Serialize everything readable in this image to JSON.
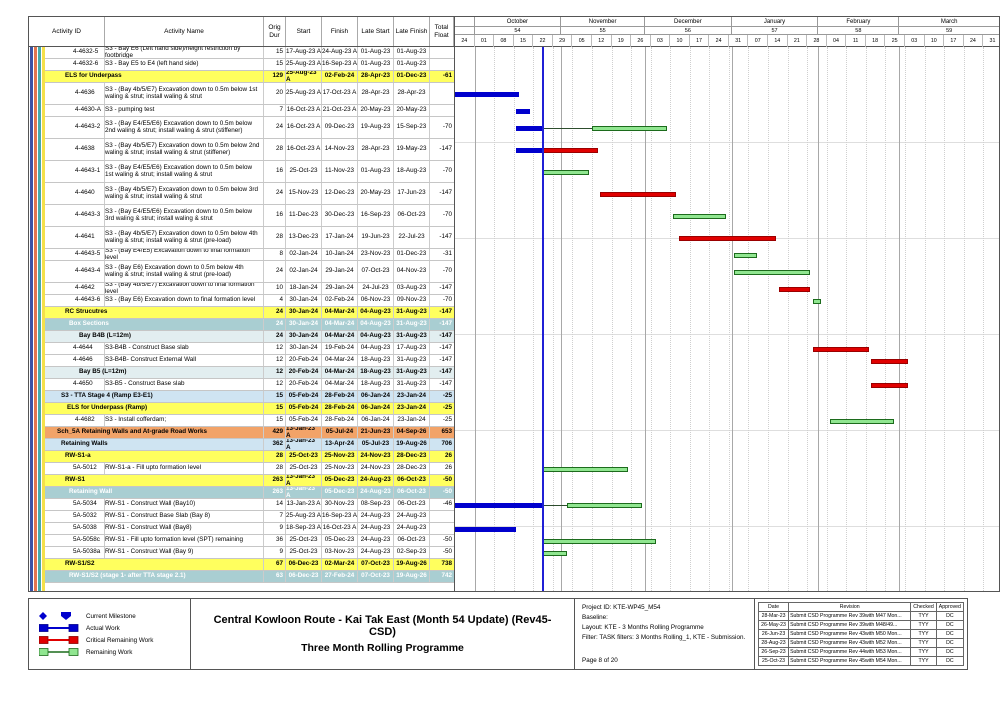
{
  "table": {
    "columns": [
      "Activity ID",
      "Activity Name",
      "Orig Dur",
      "Start",
      "Finish",
      "Late Start",
      "Late Finish",
      "Total Float"
    ]
  },
  "timeline": {
    "domain_days": 195,
    "data_date_day": 31,
    "months": [
      {
        "label": "",
        "num": "",
        "days": 7
      },
      {
        "label": "October",
        "num": "54",
        "days": 31
      },
      {
        "label": "November",
        "num": "55",
        "days": 30
      },
      {
        "label": "December",
        "num": "56",
        "days": 31
      },
      {
        "label": "January",
        "num": "57",
        "days": 31
      },
      {
        "label": "February",
        "num": "58",
        "days": 29
      },
      {
        "label": "March",
        "num": "59",
        "days": 36
      }
    ],
    "week_labels": [
      "24",
      "01",
      "08",
      "15",
      "22",
      "29",
      "05",
      "12",
      "19",
      "26",
      "03",
      "10",
      "17",
      "24",
      "31",
      "07",
      "14",
      "21",
      "28",
      "04",
      "11",
      "18",
      "25",
      "03",
      "10",
      "17",
      "24",
      "31"
    ]
  },
  "chart_data": {
    "type": "table",
    "title": "Central Kowloon Route - Kai Tak East (Month 54 Update) (Rev45- CSD) — Three Month Rolling Programme (Gantt)",
    "legend_position": "bottom-left",
    "columns": [
      "Activity ID",
      "Activity Name",
      "Orig Dur",
      "Start",
      "Finish",
      "Late Start",
      "Late Finish",
      "Total Float"
    ],
    "bar_day_offsets_from": "2023-09-24",
    "rows": [
      {
        "id": "4-4632-5",
        "name": "S3 - Bay E6  (Left hand side)/height restriction by footbridge",
        "kind": "task",
        "ind": 28,
        "h2": false,
        "dur": "15",
        "s": "17-Aug-23 A",
        "f": "24-Aug-23 A",
        "ls": "01-Aug-23",
        "lf": "01-Aug-23",
        "tf": ""
      },
      {
        "id": "4-4632-6",
        "name": "S3 - Bay E5 to E4 (left hand side)",
        "kind": "task",
        "ind": 28,
        "h2": false,
        "dur": "15",
        "s": "25-Aug-23 A",
        "f": "16-Sep-23 A",
        "ls": "01-Aug-23",
        "lf": "01-Aug-23",
        "tf": ""
      },
      {
        "id": "",
        "name": "ELS for Underpass",
        "kind": "yellow",
        "ind": 20,
        "h2": false,
        "dur": "129",
        "s": "25-Aug-23 A",
        "f": "02-Feb-24",
        "ls": "28-Apr-23",
        "lf": "01-Dec-23",
        "tf": "-61"
      },
      {
        "id": "4-4636",
        "name": "S3 - (Bay 4b/5/E7) Excavation down to 0.5m below 1st waling & strut; install waling & strut",
        "kind": "task",
        "ind": 30,
        "h2": true,
        "dur": "20",
        "s": "25-Aug-23 A",
        "f": "17-Oct-23 A",
        "ls": "28-Apr-23",
        "lf": "28-Apr-23",
        "tf": "",
        "bar": {
          "a": [
            0,
            23
          ]
        }
      },
      {
        "id": "4-4630-A",
        "name": "S3 - pumping test",
        "kind": "task",
        "ind": 30,
        "h2": false,
        "dur": "7",
        "s": "16-Oct-23 A",
        "f": "21-Oct-23 A",
        "ls": "20-May-23",
        "lf": "20-May-23",
        "tf": "",
        "bar": {
          "a": [
            22,
            27
          ]
        }
      },
      {
        "id": "4-4643-2",
        "name": "S3 - (Bay E4/E5/E6) Excavation down to 0.5m below 2nd waling & strut; install waling & strut (stiffener)",
        "kind": "task",
        "ind": 30,
        "h2": true,
        "dur": "24",
        "s": "16-Oct-23 A",
        "f": "09-Dec-23",
        "ls": "19-Aug-23",
        "lf": "15-Sep-23",
        "tf": "-70",
        "bar": {
          "a": [
            22,
            31
          ],
          "c": [
            31,
            49
          ],
          "r": [
            49,
            76
          ]
        }
      },
      {
        "id": "4-4638",
        "name": "S3 - (Bay 4b/5/E7) Excavation down to 0.5m below 2nd waling & strut; install waling & strut (stiffener)",
        "kind": "task",
        "ind": 30,
        "h2": true,
        "dur": "28",
        "s": "16-Oct-23 A",
        "f": "14-Nov-23",
        "ls": "28-Apr-23",
        "lf": "19-May-23",
        "tf": "-147",
        "bar": {
          "a": [
            22,
            31
          ],
          "r": [
            31,
            51
          ],
          "crit": true
        }
      },
      {
        "id": "4-4643-1",
        "name": "S3 - (Bay E4/E5/E6) Excavation down to 0.5m below 1st waling & strut; install waling & strut",
        "kind": "task",
        "ind": 30,
        "h2": true,
        "dur": "16",
        "s": "25-Oct-23",
        "f": "11-Nov-23",
        "ls": "01-Aug-23",
        "lf": "18-Aug-23",
        "tf": "-70",
        "bar": {
          "r": [
            31,
            48
          ]
        }
      },
      {
        "id": "4-4640",
        "name": "S3 - (Bay 4b/5/E7) Excavation down to 0.5m below 3rd waling & strut; install waling & strut",
        "kind": "task",
        "ind": 30,
        "h2": true,
        "dur": "24",
        "s": "15-Nov-23",
        "f": "12-Dec-23",
        "ls": "20-May-23",
        "lf": "17-Jun-23",
        "tf": "-147",
        "bar": {
          "r": [
            52,
            79
          ],
          "crit": true
        }
      },
      {
        "id": "4-4643-3",
        "name": "S3 - (Bay E4/E5/E6) Excavation down to 0.5m below 3rd waling & strut; install waling & strut",
        "kind": "task",
        "ind": 30,
        "h2": true,
        "dur": "16",
        "s": "11-Dec-23",
        "f": "30-Dec-23",
        "ls": "16-Sep-23",
        "lf": "06-Oct-23",
        "tf": "-70",
        "bar": {
          "r": [
            78,
            97
          ]
        }
      },
      {
        "id": "4-4641",
        "name": "S3 - (Bay 4b/5/E7) Excavation down to 0.5m below 4th waling & strut; install waling & strut (pre-load)",
        "kind": "task",
        "ind": 30,
        "h2": true,
        "dur": "28",
        "s": "13-Dec-23",
        "f": "17-Jan-24",
        "ls": "19-Jun-23",
        "lf": "22-Jul-23",
        "tf": "-147",
        "bar": {
          "r": [
            80,
            115
          ],
          "crit": true
        }
      },
      {
        "id": "4-4643-5",
        "name": "S3 - (Bay E4/E5) Excavation down to final formation level",
        "kind": "task",
        "ind": 30,
        "h2": false,
        "dur": "8",
        "s": "02-Jan-24",
        "f": "10-Jan-24",
        "ls": "23-Nov-23",
        "lf": "01-Dec-23",
        "tf": "-31",
        "bar": {
          "r": [
            100,
            108
          ]
        }
      },
      {
        "id": "4-4643-4",
        "name": "S3 - (Bay E6) Excavation down to 0.5m below 4th waling & strut; install waling & strut (pre-load)",
        "kind": "task",
        "ind": 30,
        "h2": true,
        "dur": "24",
        "s": "02-Jan-24",
        "f": "29-Jan-24",
        "ls": "07-Oct-23",
        "lf": "04-Nov-23",
        "tf": "-70",
        "bar": {
          "r": [
            100,
            127
          ]
        }
      },
      {
        "id": "4-4642",
        "name": "S3 - (Bay 4b/5/E7) Excavation down to final formation level",
        "kind": "task",
        "ind": 30,
        "h2": false,
        "dur": "10",
        "s": "18-Jan-24",
        "f": "29-Jan-24",
        "ls": "24-Jul-23",
        "lf": "03-Aug-23",
        "tf": "-147",
        "bar": {
          "r": [
            116,
            127
          ],
          "crit": true
        }
      },
      {
        "id": "4-4643-6",
        "name": "S3 - (Bay E6) Excavation down to final formation level",
        "kind": "task",
        "ind": 30,
        "h2": false,
        "dur": "4",
        "s": "30-Jan-24",
        "f": "02-Feb-24",
        "ls": "06-Nov-23",
        "lf": "09-Nov-23",
        "tf": "-70",
        "bar": {
          "r": [
            128,
            131
          ]
        }
      },
      {
        "id": "",
        "name": "RC Strucutres",
        "kind": "yellow",
        "ind": 20,
        "h2": false,
        "dur": "24",
        "s": "30-Jan-24",
        "f": "04-Mar-24",
        "ls": "04-Aug-23",
        "lf": "31-Aug-23",
        "tf": "-147"
      },
      {
        "id": "",
        "name": "Box Sections",
        "kind": "teal",
        "ind": 24,
        "h2": false,
        "dur": "24",
        "s": "30-Jan-24",
        "f": "04-Mar-24",
        "ls": "04-Aug-23",
        "lf": "31-Aug-23",
        "tf": "-147"
      },
      {
        "id": "",
        "name": "Bay B4B (L=12m)",
        "kind": "pale",
        "ind": 34,
        "h2": false,
        "dur": "24",
        "s": "30-Jan-24",
        "f": "04-Mar-24",
        "ls": "04-Aug-23",
        "lf": "31-Aug-23",
        "tf": "-147"
      },
      {
        "id": "4-4644",
        "name": "S3-B4B - Construct Base slab",
        "kind": "task",
        "ind": 28,
        "h2": false,
        "dur": "12",
        "s": "30-Jan-24",
        "f": "19-Feb-24",
        "ls": "04-Aug-23",
        "lf": "17-Aug-23",
        "tf": "-147",
        "bar": {
          "r": [
            128,
            148
          ],
          "crit": true
        }
      },
      {
        "id": "4-4646",
        "name": "S3-B4B- Construct External Wall",
        "kind": "task",
        "ind": 28,
        "h2": false,
        "dur": "12",
        "s": "20-Feb-24",
        "f": "04-Mar-24",
        "ls": "18-Aug-23",
        "lf": "31-Aug-23",
        "tf": "-147",
        "bar": {
          "r": [
            149,
            162
          ],
          "crit": true
        }
      },
      {
        "id": "",
        "name": "Bay B5 (L=12m)",
        "kind": "pale",
        "ind": 34,
        "h2": false,
        "dur": "12",
        "s": "20-Feb-24",
        "f": "04-Mar-24",
        "ls": "18-Aug-23",
        "lf": "31-Aug-23",
        "tf": "-147"
      },
      {
        "id": "4-4650",
        "name": "S3-B5 - Construct Base slab",
        "kind": "task",
        "ind": 28,
        "h2": false,
        "dur": "12",
        "s": "20-Feb-24",
        "f": "04-Mar-24",
        "ls": "18-Aug-23",
        "lf": "31-Aug-23",
        "tf": "-147",
        "bar": {
          "r": [
            149,
            162
          ],
          "crit": true
        }
      },
      {
        "id": "",
        "name": "S3 - TTA Stage 4 (Ramp E3-E1)",
        "kind": "blue",
        "ind": 16,
        "h2": false,
        "dur": "15",
        "s": "05-Feb-24",
        "f": "28-Feb-24",
        "ls": "06-Jan-24",
        "lf": "23-Jan-24",
        "tf": "-25"
      },
      {
        "id": "",
        "name": "ELS for Underpass (Ramp)",
        "kind": "yellow",
        "ind": 22,
        "h2": false,
        "dur": "15",
        "s": "05-Feb-24",
        "f": "28-Feb-24",
        "ls": "06-Jan-24",
        "lf": "23-Jan-24",
        "tf": "-25"
      },
      {
        "id": "4-4682",
        "name": "S3 - Install cofferdam;",
        "kind": "task",
        "ind": 30,
        "h2": false,
        "dur": "15",
        "s": "05-Feb-24",
        "f": "28-Feb-24",
        "ls": "06-Jan-24",
        "lf": "23-Jan-24",
        "tf": "-25",
        "bar": {
          "r": [
            134,
            157
          ]
        }
      },
      {
        "id": "",
        "name": "Sch_5A Retaining Walls and At-grade Road Works",
        "kind": "orange",
        "ind": 12,
        "h2": false,
        "dur": "429",
        "s": "13-Jan-23 A",
        "f": "05-Jul-24",
        "ls": "21-Jun-23",
        "lf": "04-Sep-26",
        "tf": "653"
      },
      {
        "id": "",
        "name": "Retaining Walls",
        "kind": "blue",
        "ind": 16,
        "h2": false,
        "dur": "362",
        "s": "13-Jan-23 A",
        "f": "13-Apr-24",
        "ls": "05-Jul-23",
        "lf": "19-Aug-26",
        "tf": "706"
      },
      {
        "id": "",
        "name": "RW-S1-a",
        "kind": "yellow",
        "ind": 20,
        "h2": false,
        "dur": "28",
        "s": "25-Oct-23",
        "f": "25-Nov-23",
        "ls": "24-Nov-23",
        "lf": "28-Dec-23",
        "tf": "26"
      },
      {
        "id": "5A-5012",
        "name": "RW-S1-a - Fill upto formation level",
        "kind": "task",
        "ind": 28,
        "h2": false,
        "dur": "28",
        "s": "25-Oct-23",
        "f": "25-Nov-23",
        "ls": "24-Nov-23",
        "lf": "28-Dec-23",
        "tf": "26",
        "bar": {
          "r": [
            31,
            62
          ]
        }
      },
      {
        "id": "",
        "name": "RW-S1",
        "kind": "yellow",
        "ind": 20,
        "h2": false,
        "dur": "263",
        "s": "13-Jan-23 A",
        "f": "05-Dec-23",
        "ls": "24-Aug-23",
        "lf": "06-Oct-23",
        "tf": "-50"
      },
      {
        "id": "",
        "name": "Retaining Wall",
        "kind": "teal",
        "ind": 24,
        "h2": false,
        "dur": "263",
        "s": "13-Jan-23 A",
        "f": "05-Dec-23",
        "ls": "24-Aug-23",
        "lf": "06-Oct-23",
        "tf": "-50"
      },
      {
        "id": "5A-5034",
        "name": "RW-S1 - Construct Wall (Bay10)",
        "kind": "task",
        "ind": 28,
        "h2": false,
        "dur": "14",
        "s": "13-Jan-23 A",
        "f": "30-Nov-23",
        "ls": "08-Sep-23",
        "lf": "06-Oct-23",
        "tf": "-46",
        "bar": {
          "a": [
            0,
            31
          ],
          "c": [
            31,
            40
          ],
          "r": [
            40,
            67
          ]
        }
      },
      {
        "id": "5A-5032",
        "name": "RW-S1 - Construct Base Slab (Bay 8)",
        "kind": "task",
        "ind": 28,
        "h2": false,
        "dur": "7",
        "s": "25-Aug-23 A",
        "f": "16-Sep-23 A",
        "ls": "24-Aug-23",
        "lf": "24-Aug-23",
        "tf": ""
      },
      {
        "id": "5A-5038",
        "name": "RW-S1 - Construct Wall (Bay8)",
        "kind": "task",
        "ind": 28,
        "h2": false,
        "dur": "9",
        "s": "18-Sep-23 A",
        "f": "16-Oct-23 A",
        "ls": "24-Aug-23",
        "lf": "24-Aug-23",
        "tf": "",
        "bar": {
          "a": [
            0,
            22
          ]
        }
      },
      {
        "id": "5A-5058c",
        "name": "RW-S1 - Fill upto formation level (SPT) remaining",
        "kind": "task",
        "ind": 28,
        "h2": false,
        "dur": "36",
        "s": "25-Oct-23",
        "f": "05-Dec-23",
        "ls": "24-Aug-23",
        "lf": "06-Oct-23",
        "tf": "-50",
        "bar": {
          "r": [
            31,
            72
          ]
        }
      },
      {
        "id": "5A-5038a",
        "name": "RW-S1 - Construct Wall (Bay 9)",
        "kind": "task",
        "ind": 28,
        "h2": false,
        "dur": "9",
        "s": "25-Oct-23",
        "f": "03-Nov-23",
        "ls": "24-Aug-23",
        "lf": "02-Sep-23",
        "tf": "-50",
        "bar": {
          "r": [
            31,
            40
          ]
        }
      },
      {
        "id": "",
        "name": "RW-S1/S2",
        "kind": "yellow",
        "ind": 20,
        "h2": false,
        "dur": "67",
        "s": "06-Dec-23",
        "f": "02-Mar-24",
        "ls": "07-Oct-23",
        "lf": "19-Aug-26",
        "tf": "738"
      },
      {
        "id": "",
        "name": "RW-S1/S2 (stage 1- after TTA stage 2.1)",
        "kind": "teal",
        "ind": 24,
        "h2": false,
        "dur": "63",
        "s": "06-Dec-23",
        "f": "27-Feb-24",
        "ls": "07-Oct-23",
        "lf": "19-Aug-26",
        "tf": "742"
      }
    ]
  },
  "stripes": [
    "#3d52a5",
    "#e2754f",
    "#49aaa8",
    "#f5e04a"
  ],
  "colors": {
    "actual_work": "#0000cd",
    "critical_remaining": "#e00000",
    "remaining_fill": "#90e690",
    "remaining_border": "#1c6b1c",
    "data_date_line": "#2020d6",
    "group_yellow": "#ffff5e",
    "group_teal": "#a9ced2",
    "group_blue": "#cfe4f2",
    "group_orange": "#f2a368"
  },
  "footer": {
    "legend": [
      {
        "icon": "milestone",
        "label": "Current Milestone"
      },
      {
        "icon": "actual",
        "label": "Actual Work"
      },
      {
        "icon": "critical",
        "label": "Critical Remaining Work"
      },
      {
        "icon": "remaining",
        "label": "Remaining Work"
      }
    ],
    "title": {
      "line1": "Central Kowloon Route - Kai Tak East (Month 54 Update) (Rev45- CSD)",
      "line2": "Three Month Rolling Programme"
    },
    "info": {
      "lines": [
        "Project ID: KTE-WP45_M54",
        "Baseline:",
        "Layout: KTE - 3 Months Rolling Programme",
        "Filter: TASK filters: 3 Months Rolling_1, KTE - Submission."
      ],
      "page": "Page 8 of 20"
    },
    "revisions": {
      "columns": [
        "Date",
        "Revision",
        "Checked",
        "Approved"
      ],
      "rows": [
        [
          "28-Mar-23",
          "Submit CSD Programme Rev 39with M47 Mon...",
          "TYY",
          "DC"
        ],
        [
          "26-May-23",
          "Submit CSD Programme Rev 39with M48/49...",
          "TYY",
          "DC"
        ],
        [
          "26-Jun-23",
          "Submit CSD Programme Rev 43with M50 Mon...",
          "TYY",
          "DC"
        ],
        [
          "28-Aug-23",
          "Submit CSD Programme Rev 43with M52 Mon...",
          "TYY",
          "DC"
        ],
        [
          "26-Sep-23",
          "Submit CSD Programme Rev 44with M53 Mon...",
          "TYY",
          "DC"
        ],
        [
          "25-Oct-23",
          "Submit CSD Programme Rev 45with M54 Mon...",
          "TYY",
          "DC"
        ]
      ]
    }
  }
}
